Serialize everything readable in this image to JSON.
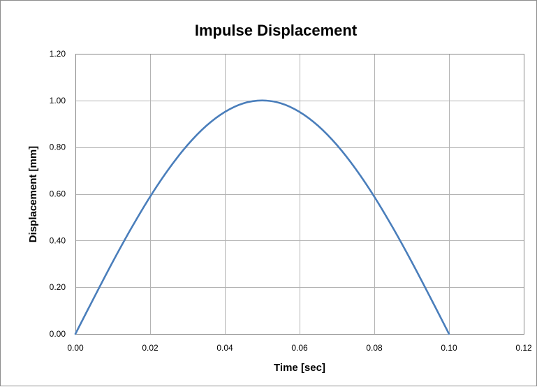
{
  "chart_data": {
    "type": "line",
    "title": "Impulse Displacement",
    "xlabel": "Time [sec]",
    "ylabel": "Displacement [mm]",
    "xlim": [
      0,
      0.12
    ],
    "ylim": [
      0,
      1.2
    ],
    "x_ticks": [
      "0.00",
      "0.02",
      "0.04",
      "0.06",
      "0.08",
      "0.10",
      "0.12"
    ],
    "y_ticks": [
      "0.00",
      "0.20",
      "0.40",
      "0.60",
      "0.80",
      "1.00",
      "1.20"
    ],
    "grid": true,
    "legend": "none",
    "series": [
      {
        "color": "#4a7ebb",
        "x": [
          0,
          0.005,
          0.01,
          0.015,
          0.02,
          0.025,
          0.03,
          0.035,
          0.04,
          0.045,
          0.05,
          0.055,
          0.06,
          0.065,
          0.07,
          0.075,
          0.08,
          0.085,
          0.09,
          0.095,
          0.1
        ],
        "y": [
          0,
          0.156,
          0.309,
          0.454,
          0.588,
          0.707,
          0.809,
          0.891,
          0.951,
          0.988,
          1.0,
          0.988,
          0.951,
          0.891,
          0.809,
          0.707,
          0.588,
          0.454,
          0.309,
          0.156,
          0
        ]
      }
    ]
  }
}
